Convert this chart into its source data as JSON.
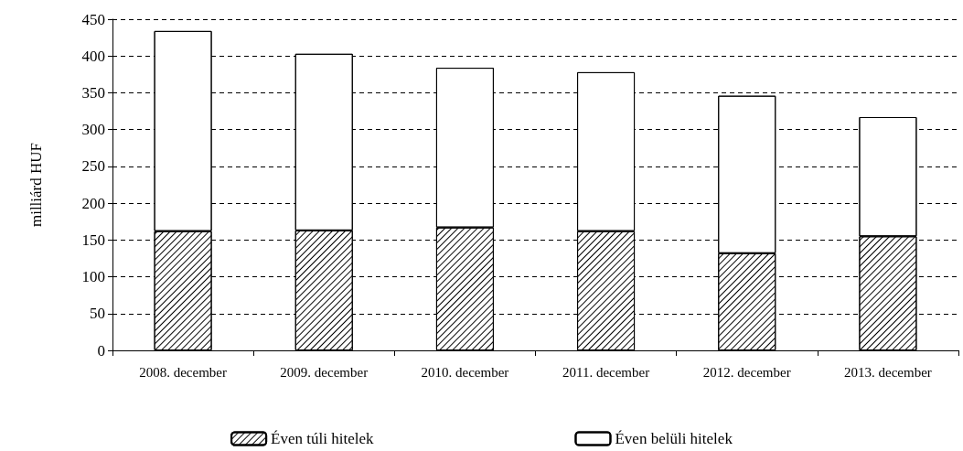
{
  "chart_data": {
    "type": "bar",
    "ylabel": "milliárd HUF",
    "categories": [
      "2008. december",
      "2009. december",
      "2010. december",
      "2011. december",
      "2012. december",
      "2013. december"
    ],
    "stacked": true,
    "series": [
      {
        "name": "Éven túli hitelek",
        "color": "#ffffff",
        "values": [
          162,
          163,
          167,
          162,
          132,
          155
        ]
      },
      {
        "name": "Éven belüli hitelek",
        "color": "#ffffff",
        "values": [
          272,
          240,
          217,
          216,
          214,
          162
        ]
      }
    ],
    "ylim": [
      0,
      450
    ],
    "yticks": [
      0,
      50,
      100,
      150,
      200,
      250,
      300,
      350,
      400,
      450
    ],
    "grid": "y",
    "legend": "bottom"
  }
}
